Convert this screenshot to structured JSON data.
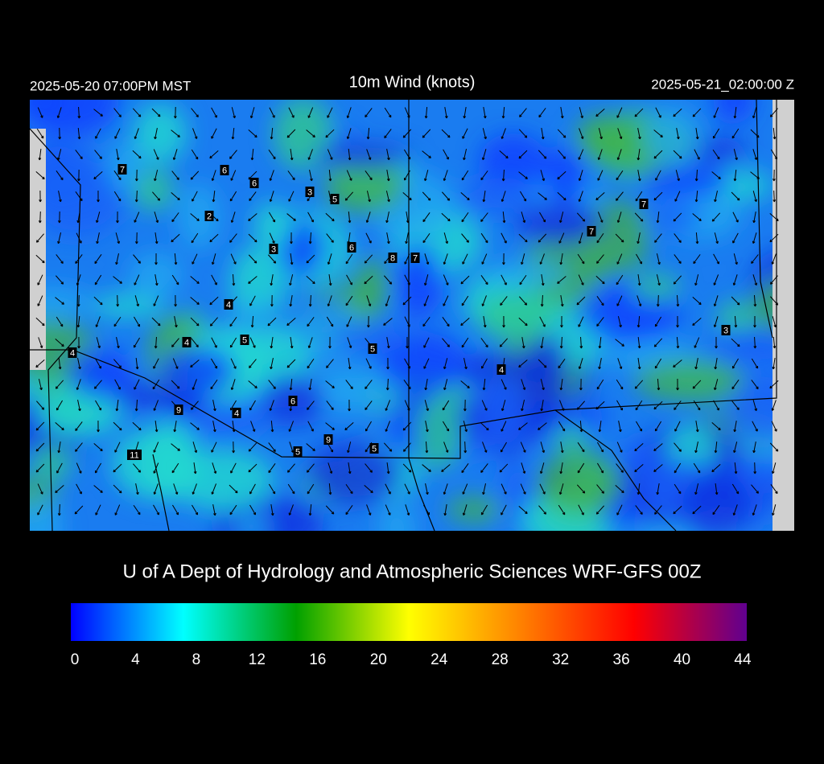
{
  "header": {
    "left": "2025-05-20 07:00PM MST",
    "title": "10m Wind (knots)",
    "right": "2025-05-21_02:00:00 Z"
  },
  "map": {
    "wind_labels": [
      7,
      6,
      6,
      3,
      5,
      2,
      3,
      6,
      8,
      7,
      7,
      7,
      4,
      4,
      5,
      4,
      5,
      4,
      3,
      9,
      4,
      6,
      9,
      5,
      5,
      11
    ]
  },
  "credit": "U of A Dept of Hydrology and Atmospheric Sciences WRF-GFS 00Z",
  "colorbar": {
    "lim": [
      0,
      44
    ],
    "ticks": [
      0,
      4,
      8,
      12,
      16,
      20,
      24,
      28,
      32,
      36,
      40,
      44
    ],
    "colors": [
      "#0000ff",
      "#00ffff",
      "#00a000",
      "#ffff00",
      "#ff8000",
      "#ff0000",
      "#600090"
    ]
  }
}
